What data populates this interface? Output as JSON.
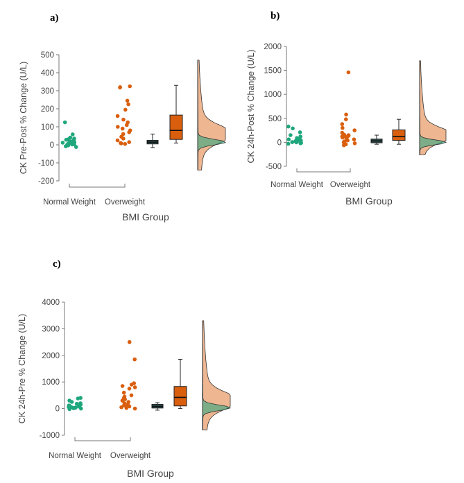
{
  "figure": {
    "colors": {
      "normal": "#1fa67c",
      "overweight": "#d95f0e",
      "normal_box": "#2f4f4f",
      "axis": "#777777",
      "text": "#444444"
    }
  },
  "chart_data": [
    {
      "type": "raincloud",
      "panel": "a)",
      "title": "",
      "ylabel": "CK Pre-Post % Change (U/L)",
      "xlabel": "BMI Group",
      "categories": [
        "Normal Weight",
        "Overweight"
      ],
      "ylim": [
        -200,
        500
      ],
      "yticks": [
        -200,
        -100,
        0,
        100,
        200,
        300,
        400,
        500
      ],
      "series": [
        {
          "name": "Normal Weight",
          "points": [
            125,
            58,
            40,
            32,
            28,
            25,
            22,
            20,
            18,
            15,
            12,
            10,
            8,
            5,
            3,
            0,
            -3,
            -8,
            -12,
            2,
            14,
            35
          ],
          "box": {
            "min": -15,
            "q1": 5,
            "median": 15,
            "q3": 25,
            "max": 60
          }
        },
        {
          "name": "Overweight",
          "points": [
            325,
            318,
            320,
            245,
            225,
            195,
            160,
            140,
            125,
            110,
            100,
            90,
            80,
            70,
            60,
            45,
            35,
            25,
            15,
            10,
            8,
            5
          ],
          "box": {
            "min": 10,
            "q1": 30,
            "median": 80,
            "q3": 165,
            "max": 330
          }
        }
      ],
      "density": {
        "min": -140,
        "max": 470,
        "peak_normal": 15,
        "peak_overweight": 60
      }
    },
    {
      "type": "raincloud",
      "panel": "b)",
      "title": "",
      "ylabel": "CK 24h-Post % Change (U/L)",
      "xlabel": "BMI Group",
      "categories": [
        "Normal Weight",
        "Overweight"
      ],
      "ylim": [
        -500,
        2000
      ],
      "yticks": [
        -500,
        0,
        500,
        1000,
        1500,
        2000
      ],
      "series": [
        {
          "name": "Normal Weight",
          "points": [
            330,
            290,
            210,
            150,
            120,
            90,
            70,
            60,
            50,
            40,
            30,
            20,
            10,
            0,
            -10,
            -20,
            -30,
            80,
            15,
            5
          ],
          "box": {
            "min": -40,
            "q1": -10,
            "median": 30,
            "q3": 70,
            "max": 150
          }
        },
        {
          "name": "Overweight",
          "points": [
            1460,
            580,
            480,
            380,
            300,
            250,
            200,
            160,
            140,
            130,
            110,
            100,
            80,
            60,
            40,
            20,
            0,
            -20,
            -40,
            -60,
            150,
            120
          ],
          "box": {
            "min": -40,
            "q1": 40,
            "median": 120,
            "q3": 260,
            "max": 480
          }
        }
      ],
      "density": {
        "min": -260,
        "max": 1700,
        "peak_normal": 0,
        "peak_overweight": 150
      }
    },
    {
      "type": "raincloud",
      "panel": "c)",
      "title": "",
      "ylabel": "CK 24h-Pre % Change (U/L)",
      "xlabel": "BMI Group",
      "categories": [
        "Normal Weight",
        "Overweight"
      ],
      "ylim": [
        -1000,
        4000
      ],
      "yticks": [
        -1000,
        0,
        1000,
        2000,
        3000,
        4000
      ],
      "series": [
        {
          "name": "Normal Weight",
          "points": [
            400,
            380,
            300,
            250,
            200,
            180,
            150,
            120,
            100,
            80,
            60,
            50,
            40,
            30,
            20,
            10,
            0,
            -20,
            70,
            90
          ],
          "box": {
            "min": -60,
            "q1": 20,
            "median": 80,
            "q3": 160,
            "max": 220
          }
        },
        {
          "name": "Overweight",
          "points": [
            2500,
            1850,
            950,
            900,
            850,
            800,
            750,
            600,
            500,
            450,
            400,
            350,
            300,
            250,
            200,
            150,
            100,
            50,
            20,
            0,
            80,
            120
          ],
          "box": {
            "min": 0,
            "q1": 100,
            "median": 420,
            "q3": 830,
            "max": 1850
          }
        }
      ],
      "density": {
        "min": -800,
        "max": 3300,
        "peak_normal": 30,
        "peak_overweight": 300
      }
    }
  ]
}
